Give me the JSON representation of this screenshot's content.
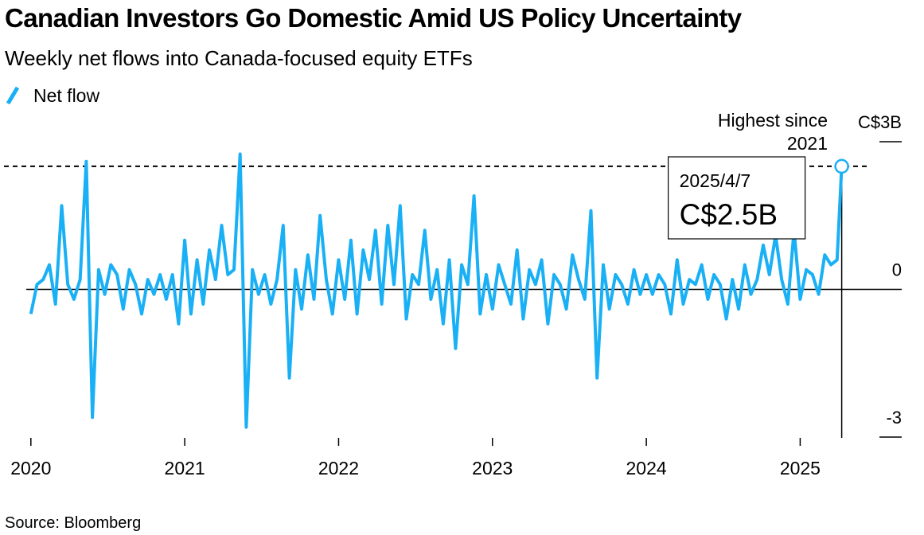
{
  "chart_data": {
    "type": "line",
    "title": "Canadian Investors Go Domestic Amid US Policy Uncertainty",
    "subtitle": "Weekly net flows into Canada-focused equity ETFs",
    "source": "Source: Bloomberg",
    "annotation": "Highest since 2021",
    "callout_date": "2025/4/7",
    "x": [
      2020,
      2020.04,
      2020.08,
      2020.12,
      2020.16,
      2020.2,
      2020.24,
      2020.28,
      2020.32,
      2020.36,
      2020.4,
      2020.44,
      2020.48,
      2020.52,
      2020.56,
      2020.6,
      2020.64,
      2020.68,
      2020.72,
      2020.76,
      2020.8,
      2020.84,
      2020.88,
      2020.92,
      2020.96,
      2021,
      2021.04,
      2021.08,
      2021.12,
      2021.16,
      2021.2,
      2021.24,
      2021.28,
      2021.32,
      2021.36,
      2021.4,
      2021.44,
      2021.48,
      2021.52,
      2021.56,
      2021.6,
      2021.64,
      2021.68,
      2021.72,
      2021.76,
      2021.8,
      2021.84,
      2021.88,
      2021.92,
      2021.96,
      2022,
      2022.04,
      2022.08,
      2022.12,
      2022.16,
      2022.2,
      2022.24,
      2022.28,
      2022.32,
      2022.36,
      2022.4,
      2022.44,
      2022.48,
      2022.52,
      2022.56,
      2022.6,
      2022.64,
      2022.68,
      2022.72,
      2022.76,
      2022.8,
      2022.84,
      2022.88,
      2022.92,
      2022.96,
      2023,
      2023.04,
      2023.08,
      2023.12,
      2023.16,
      2023.2,
      2023.24,
      2023.28,
      2023.32,
      2023.36,
      2023.4,
      2023.44,
      2023.48,
      2023.52,
      2023.56,
      2023.6,
      2023.64,
      2023.68,
      2023.72,
      2023.76,
      2023.8,
      2023.84,
      2023.88,
      2023.92,
      2023.96,
      2024,
      2024.04,
      2024.08,
      2024.12,
      2024.16,
      2024.2,
      2024.24,
      2024.28,
      2024.32,
      2024.36,
      2024.4,
      2024.44,
      2024.48,
      2024.52,
      2024.56,
      2024.6,
      2024.64,
      2024.68,
      2024.72,
      2024.76,
      2024.8,
      2024.84,
      2024.88,
      2024.92,
      2024.96,
      2025,
      2025.04,
      2025.08,
      2025.12,
      2025.16,
      2025.2,
      2025.24,
      2025.27
    ],
    "xlim": [
      2019.97,
      2025.66
    ],
    "xticks": [
      2020,
      2021,
      2022,
      2023,
      2024,
      2025
    ],
    "ylim": [
      -3,
      3
    ],
    "yticks": [
      {
        "value": 3,
        "label": "C$3B"
      },
      0,
      -3
    ],
    "series": [
      {
        "name": "Net flow",
        "color": "#1ab0f5",
        "values": [
          -0.5,
          0.1,
          0.2,
          0.5,
          -0.3,
          1.7,
          0.1,
          -0.2,
          0.2,
          2.6,
          -2.6,
          0.4,
          -0.1,
          0.5,
          0.3,
          -0.4,
          0.4,
          0.1,
          -0.5,
          0.2,
          -0.1,
          0.3,
          -0.2,
          0.3,
          -0.7,
          1.0,
          -0.5,
          0.6,
          -0.3,
          0.8,
          0.2,
          1.3,
          0.3,
          0.4,
          2.75,
          -2.8,
          0.4,
          -0.1,
          0.3,
          -0.3,
          0.2,
          1.3,
          -1.8,
          0.4,
          -0.4,
          0.7,
          -0.2,
          1.5,
          0.2,
          -0.5,
          0.6,
          -0.2,
          1.0,
          -0.5,
          0.8,
          0.2,
          1.2,
          -0.3,
          1.3,
          0.1,
          1.7,
          -0.6,
          0.3,
          0.1,
          1.2,
          -0.2,
          0.4,
          -0.7,
          0.6,
          -1.2,
          0.5,
          0.1,
          1.9,
          -0.5,
          0.3,
          -0.4,
          0.5,
          0.1,
          -0.3,
          0.8,
          -0.6,
          0.4,
          0.1,
          0.6,
          -0.7,
          0.3,
          0.1,
          -0.4,
          0.7,
          0.2,
          -0.2,
          1.6,
          -1.8,
          0.5,
          -0.4,
          0.3,
          0.1,
          -0.3,
          0.4,
          -0.1,
          0.3,
          -0.1,
          0.3,
          0.1,
          -0.5,
          0.6,
          -0.3,
          0.2,
          0.1,
          0.5,
          -0.2,
          0.3,
          0.1,
          -0.6,
          0.2,
          -0.4,
          0.5,
          -0.1,
          0.2,
          0.9,
          0.3,
          1.1,
          0.2,
          -0.3,
          1.2,
          -0.2,
          0.4,
          0.3,
          -0.1,
          0.7,
          0.5,
          0.6,
          2.5
        ],
        "value_labels": [
          null,
          null,
          null,
          null,
          null,
          null,
          null,
          null,
          null,
          null,
          null,
          null,
          null,
          null,
          null,
          null,
          null,
          null,
          null,
          null,
          null,
          null,
          null,
          null,
          null,
          null,
          null,
          null,
          null,
          null,
          null,
          null,
          null,
          null,
          null,
          null,
          null,
          null,
          null,
          null,
          null,
          null,
          null,
          null,
          null,
          null,
          null,
          null,
          null,
          null,
          null,
          null,
          null,
          null,
          null,
          null,
          null,
          null,
          null,
          null,
          null,
          null,
          null,
          null,
          null,
          null,
          null,
          null,
          null,
          null,
          null,
          null,
          null,
          null,
          null,
          null,
          null,
          null,
          null,
          null,
          null,
          null,
          null,
          null,
          null,
          null,
          null,
          null,
          null,
          null,
          null,
          null,
          null,
          null,
          null,
          null,
          null,
          null,
          null,
          null,
          null,
          null,
          null,
          null,
          null,
          null,
          null,
          null,
          null,
          null,
          null,
          null,
          null,
          null,
          null,
          null,
          null,
          null,
          null,
          null,
          null,
          null,
          null,
          null,
          null,
          null,
          null,
          null,
          null,
          null,
          null,
          null,
          "C$2.5B"
        ]
      }
    ]
  }
}
